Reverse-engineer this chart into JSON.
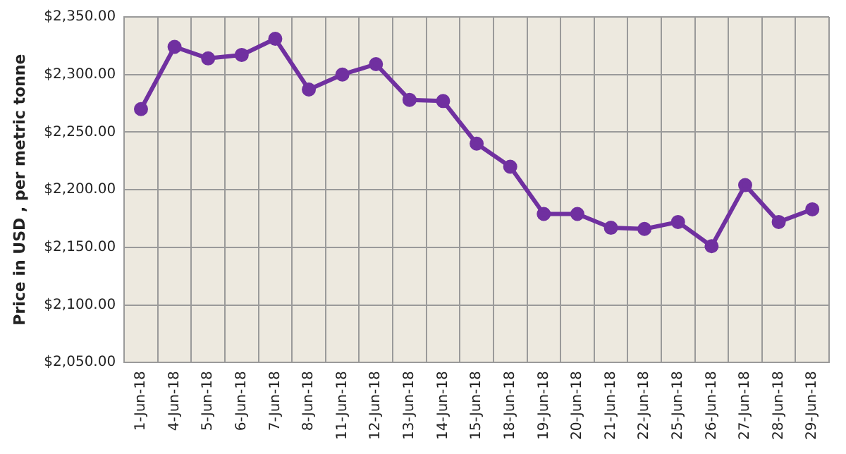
{
  "chart_data": {
    "type": "line",
    "ylabel": "Price in USD , per metric tonne",
    "categories": [
      "1-Jun-18",
      "4-Jun-18",
      "5-Jun-18",
      "6-Jun-18",
      "7-Jun-18",
      "8-Jun-18",
      "11-Jun-18",
      "12-Jun-18",
      "13-Jun-18",
      "14-Jun-18",
      "15-Jun-18",
      "18-Jun-18",
      "19-Jun-18",
      "20-Jun-18",
      "21-Jun-18",
      "22-Jun-18",
      "25-Jun-18",
      "26-Jun-18",
      "27-Jun-18",
      "28-Jun-18",
      "29-Jun-18"
    ],
    "series": [
      {
        "color": "#7030a0",
        "values": [
          2270,
          2324,
          2314,
          2317,
          2331,
          2287,
          2300,
          2309,
          2278,
          2277,
          2240,
          2220,
          2179,
          2179,
          2167,
          2166,
          2172,
          2151,
          2204,
          2172,
          2183
        ]
      }
    ],
    "ylim": [
      2050,
      2350
    ],
    "yticks": [
      {
        "value": 2050,
        "label": "$2,050.00"
      },
      {
        "value": 2100,
        "label": "$2,100.00"
      },
      {
        "value": 2150,
        "label": "$2,150.00"
      },
      {
        "value": 2200,
        "label": "$2,200.00"
      },
      {
        "value": 2250,
        "label": "$2,250.00"
      },
      {
        "value": 2300,
        "label": "$2,300.00"
      },
      {
        "value": 2350,
        "label": "$2,350.00"
      }
    ],
    "grid": true,
    "marker": "circle",
    "line_style": "solid"
  }
}
